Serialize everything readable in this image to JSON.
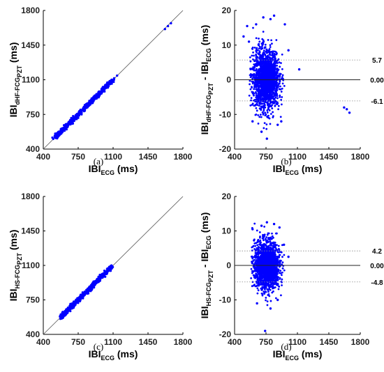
{
  "chart_data": [
    {
      "panel": "(a)",
      "type": "scatter",
      "xlabel_main": "IBI",
      "xlabel_sub": "ECG",
      "xlabel_unit": " (ms)",
      "ylabel_main": "IBI",
      "ylabel_sub": "dHF-FCG",
      "ylabel_subsub": "PZT",
      "ylabel_unit": " (ms)",
      "xlim": [
        400,
        1800
      ],
      "ylim": [
        400,
        1800
      ],
      "xticks": [
        400,
        750,
        1100,
        1450,
        1800
      ],
      "yticks": [
        400,
        750,
        1100,
        1450,
        1800
      ],
      "identity_line": true,
      "series": [
        {
          "color": "#0000ff",
          "x": [
            520,
            560,
            600,
            640,
            680,
            720,
            760,
            800,
            840,
            880,
            920,
            960,
            1000,
            1040,
            1100,
            1140,
            1620,
            1650,
            1680
          ],
          "y": [
            518,
            558,
            601,
            641,
            679,
            720,
            761,
            799,
            841,
            879,
            921,
            959,
            1000,
            1041,
            1098,
            1142,
            1612,
            1642,
            1671
          ]
        }
      ]
    },
    {
      "panel": "(b)",
      "type": "scatter",
      "xlabel_main": "IBI",
      "xlabel_sub": "ECG",
      "xlabel_unit": " (ms)",
      "ylabel_main": "IBI",
      "ylabel_sub": "dHF-FCG",
      "ylabel_subsub": "PZT",
      "ylabel_mid": " - IBI",
      "ylabel_sub2": "ECG",
      "ylabel_unit": " (ms)",
      "xlim": [
        400,
        1800
      ],
      "ylim": [
        -20,
        20
      ],
      "xticks": [
        400,
        750,
        1100,
        1450,
        1800
      ],
      "yticks": [
        -20,
        -10,
        0,
        10,
        20
      ],
      "ref_lines": [
        {
          "value": 5.7,
          "label": "5.7",
          "style": "dotted"
        },
        {
          "value": 0.0,
          "label": "0.00",
          "style": "solid"
        },
        {
          "value": -6.1,
          "label": "-6.1",
          "style": "dotted"
        }
      ],
      "cluster": {
        "x_range": [
          560,
          960
        ],
        "center": 750,
        "sd": 4.2,
        "spread_max": 17
      },
      "series": [
        {
          "color": "#0000ff",
          "x": [
            500,
            540,
            560,
            600,
            640,
            700,
            720,
            760,
            800,
            840,
            880,
            920,
            960,
            1000,
            1120,
            1620,
            1650,
            1680
          ],
          "y": [
            12.5,
            15.5,
            11.0,
            -12.0,
            16.0,
            -15.0,
            18.0,
            -17.0,
            17.5,
            18.5,
            -13.0,
            -12.0,
            16.0,
            8.5,
            3.0,
            -8.0,
            -8.5,
            -9.5
          ]
        }
      ]
    },
    {
      "panel": "(c)",
      "type": "scatter",
      "xlabel_main": "IBI",
      "xlabel_sub": "ECG",
      "xlabel_unit": " (ms)",
      "ylabel_main": "IBI",
      "ylabel_sub": "HS-FCG",
      "ylabel_subsub": "PZT",
      "ylabel_unit": " (ms)",
      "xlim": [
        400,
        1800
      ],
      "ylim": [
        400,
        1800
      ],
      "xticks": [
        400,
        750,
        1100,
        1450,
        1800
      ],
      "yticks": [
        400,
        750,
        1100,
        1450,
        1800
      ],
      "identity_line": true,
      "series": [
        {
          "color": "#0000ff",
          "x": [
            580,
            620,
            660,
            700,
            740,
            780,
            820,
            860,
            900,
            940,
            980,
            1020,
            1060,
            1090
          ],
          "y": [
            579,
            621,
            660,
            699,
            741,
            780,
            819,
            861,
            900,
            939,
            981,
            1020,
            1058,
            1092
          ]
        }
      ]
    },
    {
      "panel": "(d)",
      "type": "scatter",
      "xlabel_main": "IBI",
      "xlabel_sub": "ECG",
      "xlabel_unit": " (ms)",
      "ylabel_main": "IBI",
      "ylabel_sub": "HS-FCG",
      "ylabel_subsub": "PZT",
      "ylabel_mid": " - IBI",
      "ylabel_sub2": "ECG",
      "ylabel_unit": " (ms)",
      "xlim": [
        400,
        1800
      ],
      "ylim": [
        -20,
        20
      ],
      "xticks": [
        400,
        750,
        1100,
        1450,
        1800
      ],
      "yticks": [
        -20,
        -10,
        0,
        10,
        20
      ],
      "ref_lines": [
        {
          "value": 4.2,
          "label": "4.2",
          "style": "dotted"
        },
        {
          "value": 0.0,
          "label": "0.00",
          "style": "solid"
        },
        {
          "value": -4.8,
          "label": "-4.8",
          "style": "dotted"
        }
      ],
      "cluster": {
        "x_range": [
          580,
          960
        ],
        "center": 760,
        "sd": 3.4,
        "spread_max": 13
      },
      "series": [
        {
          "color": "#0000ff",
          "x": [
            600,
            650,
            700,
            740,
            760,
            800,
            840,
            880,
            900,
            950,
            1000
          ],
          "y": [
            10.5,
            -11.0,
            11.5,
            -19.0,
            12.5,
            -12.5,
            12.0,
            -10.0,
            11.0,
            6.0,
            2.5
          ]
        }
      ]
    }
  ]
}
